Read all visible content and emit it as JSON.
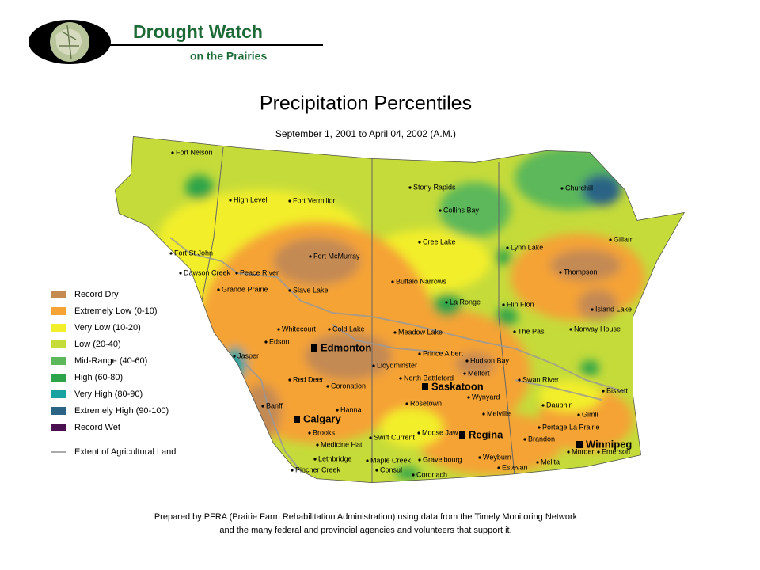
{
  "header": {
    "title": "Drought Watch",
    "subtitle": "on the Prairies"
  },
  "map": {
    "title": "Precipitation Percentiles",
    "date_range": "September 1, 2001 to April 04, 2002 (A.M.)",
    "legend": [
      {
        "label": "Record Dry",
        "color": "#c48a52"
      },
      {
        "label": "Extremely Low  (0-10)",
        "color": "#f5a335"
      },
      {
        "label": "Very Low  (10-20)",
        "color": "#f2ee2a"
      },
      {
        "label": "Low  (20-40)",
        "color": "#c5db3a"
      },
      {
        "label": "Mid-Range  (40-60)",
        "color": "#5cb85a"
      },
      {
        "label": "High  (60-80)",
        "color": "#2ea44a"
      },
      {
        "label": "Very High  (80-90)",
        "color": "#19a3a0"
      },
      {
        "label": "Extremely High  (90-100)",
        "color": "#2b6485"
      },
      {
        "label": "Record Wet",
        "color": "#4a1050"
      }
    ],
    "agri_label": "Extent of Agricultural Land",
    "cities": [
      {
        "name": "Fort Nelson"
      },
      {
        "name": "High Level"
      },
      {
        "name": "Fort Vermilion"
      },
      {
        "name": "Stony Rapids"
      },
      {
        "name": "Churchill"
      },
      {
        "name": "Collins Bay"
      },
      {
        "name": "Gillam"
      },
      {
        "name": "Fort St John"
      },
      {
        "name": "Cree Lake"
      },
      {
        "name": "Lynn Lake"
      },
      {
        "name": "Fort McMurray"
      },
      {
        "name": "Dawson Creek"
      },
      {
        "name": "Peace River"
      },
      {
        "name": "Thompson"
      },
      {
        "name": "Buffalo Narrows"
      },
      {
        "name": "Grande Prairie"
      },
      {
        "name": "Slave Lake"
      },
      {
        "name": "La Ronge"
      },
      {
        "name": "Flin Flon"
      },
      {
        "name": "Island Lake"
      },
      {
        "name": "Whitecourt"
      },
      {
        "name": "Cold Lake"
      },
      {
        "name": "Meadow Lake"
      },
      {
        "name": "The Pas"
      },
      {
        "name": "Norway House"
      },
      {
        "name": "Edson"
      },
      {
        "name": "Edmonton",
        "major": true
      },
      {
        "name": "Prince Albert"
      },
      {
        "name": "Jasper"
      },
      {
        "name": "Lloydminster"
      },
      {
        "name": "Hudson Bay"
      },
      {
        "name": "Melfort"
      },
      {
        "name": "North Battleford"
      },
      {
        "name": "Red Deer"
      },
      {
        "name": "Swan River"
      },
      {
        "name": "Saskatoon",
        "major": true
      },
      {
        "name": "Coronation"
      },
      {
        "name": "Wynyard"
      },
      {
        "name": "Bissett"
      },
      {
        "name": "Banff"
      },
      {
        "name": "Hanna"
      },
      {
        "name": "Rosetown"
      },
      {
        "name": "Dauphin"
      },
      {
        "name": "Calgary",
        "major": true
      },
      {
        "name": "Melville"
      },
      {
        "name": "Gimli"
      },
      {
        "name": "Portage La Prairie"
      },
      {
        "name": "Brooks"
      },
      {
        "name": "Moose Jaw"
      },
      {
        "name": "Regina",
        "major": true
      },
      {
        "name": "Swift Current"
      },
      {
        "name": "Brandon"
      },
      {
        "name": "Winnipeg",
        "major": true
      },
      {
        "name": "Medicine Hat"
      },
      {
        "name": "Morden"
      },
      {
        "name": "Emerson"
      },
      {
        "name": "Lethbridge"
      },
      {
        "name": "Maple Creek"
      },
      {
        "name": "Gravelbourg"
      },
      {
        "name": "Weyburn"
      },
      {
        "name": "Melita"
      },
      {
        "name": "Estevan"
      },
      {
        "name": "Pincher Creek"
      },
      {
        "name": "Consul"
      },
      {
        "name": "Coronach"
      }
    ]
  },
  "footer": {
    "line1": "Prepared by PFRA (Prairie Farm Rehabilitation Administration) using data from the Timely Monitoring Network",
    "line2": "and the many federal and provincial agencies and volunteers that support it."
  }
}
